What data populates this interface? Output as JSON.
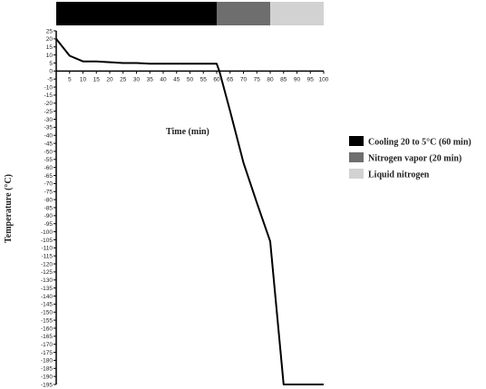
{
  "chart_data": {
    "type": "line",
    "xlabel": "Time (min)",
    "ylabel": "Temperature (°C)",
    "xlim": [
      0,
      100
    ],
    "ylim": [
      -195,
      25
    ],
    "x_ticks": [
      5,
      10,
      15,
      20,
      25,
      30,
      35,
      40,
      45,
      50,
      55,
      60,
      65,
      70,
      75,
      80,
      85,
      90,
      95,
      100
    ],
    "y_ticks": [
      25,
      20,
      15,
      10,
      5,
      0,
      -5,
      -10,
      -15,
      -20,
      -25,
      -30,
      -35,
      -40,
      -45,
      -50,
      -55,
      -60,
      -65,
      -70,
      -75,
      -80,
      -85,
      -90,
      -95,
      -100,
      -105,
      -110,
      -115,
      -120,
      -125,
      -130,
      -135,
      -140,
      -145,
      -150,
      -155,
      -160,
      -165,
      -170,
      -175,
      -180,
      -185,
      -190,
      -195
    ],
    "series": [
      {
        "x": [
          0,
          5,
          10,
          15,
          20,
          25,
          30,
          35,
          40,
          45,
          50,
          55,
          60,
          61,
          65,
          70,
          75,
          80,
          85,
          90,
          95,
          100
        ],
        "values": [
          20,
          9.5,
          6,
          6,
          5.5,
          5,
          5,
          4.5,
          4.5,
          4.5,
          4.5,
          4.5,
          4.5,
          0,
          -25,
          -57,
          -82,
          -106,
          -195,
          -195,
          -195,
          -195
        ]
      }
    ],
    "phases": [
      {
        "label": "Cooling 20 to 5°C (60 min)",
        "start": 0,
        "end": 60,
        "color": "#000000"
      },
      {
        "label": "Nitrogen vapor (20 min)",
        "start": 60,
        "end": 80,
        "color": "#6e6e6e"
      },
      {
        "label": "Liquid nitrogen",
        "start": 80,
        "end": 100,
        "color": "#d2d2d2"
      }
    ],
    "legend_position": "right",
    "grid": false
  }
}
